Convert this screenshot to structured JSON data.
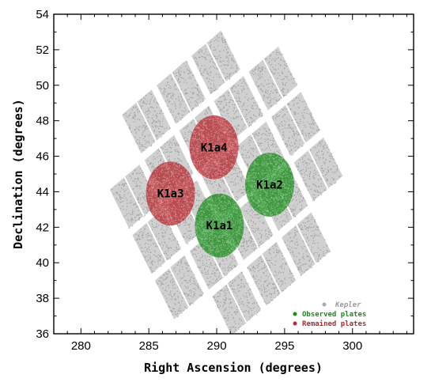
{
  "chart_data": {
    "type": "scatter",
    "xlabel": "Right Ascension (degrees)",
    "ylabel": "Declination (degrees)",
    "xlim": [
      278,
      304.5
    ],
    "ylim": [
      36,
      54
    ],
    "xticks": [
      280,
      285,
      290,
      295,
      300
    ],
    "yticks": [
      36,
      38,
      40,
      42,
      44,
      46,
      48,
      50,
      52,
      54
    ],
    "grid": false,
    "legend_position": "bottom-right",
    "colors": {
      "kepler": "#a9a9a9",
      "observed": "#1a8a1a",
      "remained": "#b5292f",
      "legend_kepler_text": "#9a9a9a",
      "legend_observed_text": "#1a8a1a",
      "legend_remained_text": "#b5292f"
    },
    "legend": [
      {
        "key": "kepler",
        "label": "Kepler"
      },
      {
        "key": "observed",
        "label": "Observed plates"
      },
      {
        "key": "remained",
        "label": "Remained plates"
      }
    ],
    "plates": [
      {
        "name": "K1a4",
        "status": "remained",
        "ra_center": 289.8,
        "dec_center": 46.5,
        "radius_deg": 1.8
      },
      {
        "name": "K1a3",
        "status": "remained",
        "ra_center": 286.6,
        "dec_center": 43.9,
        "radius_deg": 1.8
      },
      {
        "name": "K1a2",
        "status": "observed",
        "ra_center": 293.9,
        "dec_center": 44.4,
        "radius_deg": 1.8
      },
      {
        "name": "K1a1",
        "status": "observed",
        "ra_center": 290.2,
        "dec_center": 42.1,
        "radius_deg": 1.8
      }
    ],
    "kepler_field": {
      "center_ra": 290.7,
      "center_dec": 44.5,
      "rotation_deg": 33,
      "module_size_deg": 2.6,
      "module_gap_deg": 0.45,
      "grid_pattern": [
        [
          0,
          1,
          1,
          1,
          0
        ],
        [
          1,
          1,
          1,
          1,
          1
        ],
        [
          1,
          1,
          1,
          1,
          1
        ],
        [
          1,
          1,
          1,
          1,
          1
        ],
        [
          0,
          1,
          1,
          1,
          0
        ]
      ]
    }
  }
}
